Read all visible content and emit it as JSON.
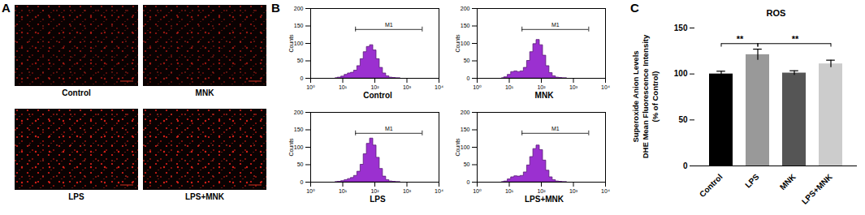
{
  "images": {
    "panel": "A",
    "labels": [
      "Control",
      "MNK",
      "LPS",
      "LPS+MNK"
    ]
  },
  "chart_data": [
    {
      "type": "area",
      "panel": "B",
      "title": "Control",
      "y_label": "Counts",
      "log": "x",
      "color": "#9b30d0",
      "x": [
        6,
        8,
        10,
        13,
        16,
        20,
        25,
        32,
        40,
        50,
        63,
        79,
        100,
        126,
        158,
        200,
        251,
        316,
        398,
        501,
        631
      ],
      "values": [
        0,
        2,
        5,
        10,
        14,
        16,
        22,
        35,
        55,
        75,
        90,
        95,
        80,
        55,
        30,
        14,
        6,
        2,
        1,
        0,
        0
      ],
      "xlim": [
        1,
        10000
      ],
      "xticks": [
        {
          "value": 1,
          "label": "10⁰"
        },
        {
          "value": 10,
          "label": "10¹"
        },
        {
          "value": 100,
          "label": "10²"
        },
        {
          "value": 1000,
          "label": "10³"
        },
        {
          "value": 10000,
          "label": "10⁴"
        }
      ],
      "ylim": [
        0,
        200
      ],
      "yticks": [
        0,
        50,
        100,
        150,
        200
      ],
      "gate": {
        "label": "M1",
        "from": 25,
        "to": 3000,
        "y": 140
      }
    },
    {
      "type": "area",
      "panel": "B",
      "title": "MNK",
      "y_label": "Counts",
      "log": "x",
      "color": "#9b30d0",
      "x": [
        6,
        8,
        10,
        13,
        16,
        20,
        25,
        32,
        40,
        50,
        63,
        79,
        100,
        126,
        158,
        200,
        251,
        316,
        398,
        501,
        631
      ],
      "values": [
        0,
        3,
        10,
        18,
        20,
        18,
        20,
        30,
        50,
        75,
        98,
        110,
        95,
        65,
        35,
        15,
        6,
        2,
        1,
        0,
        0
      ],
      "xlim": [
        1,
        10000
      ],
      "xticks": [
        {
          "value": 1,
          "label": "10⁰"
        },
        {
          "value": 10,
          "label": "10¹"
        },
        {
          "value": 100,
          "label": "10²"
        },
        {
          "value": 1000,
          "label": "10³"
        },
        {
          "value": 10000,
          "label": "10⁴"
        }
      ],
      "ylim": [
        0,
        200
      ],
      "yticks": [
        0,
        50,
        100,
        150,
        200
      ],
      "gate": {
        "label": "M1",
        "from": 25,
        "to": 3000,
        "y": 140
      }
    },
    {
      "type": "area",
      "panel": "B",
      "title": "LPS",
      "y_label": "Counts",
      "log": "x",
      "color": "#9b30d0",
      "x": [
        6,
        8,
        10,
        13,
        16,
        20,
        25,
        32,
        40,
        50,
        63,
        79,
        100,
        126,
        158,
        200,
        251,
        316,
        398,
        501,
        631
      ],
      "values": [
        0,
        1,
        3,
        6,
        9,
        12,
        18,
        30,
        50,
        80,
        110,
        125,
        105,
        70,
        38,
        16,
        6,
        2,
        1,
        0,
        0
      ],
      "xlim": [
        1,
        10000
      ],
      "xticks": [
        {
          "value": 1,
          "label": "10⁰"
        },
        {
          "value": 10,
          "label": "10¹"
        },
        {
          "value": 100,
          "label": "10²"
        },
        {
          "value": 1000,
          "label": "10³"
        },
        {
          "value": 10000,
          "label": "10⁴"
        }
      ],
      "ylim": [
        0,
        200
      ],
      "yticks": [
        0,
        50,
        100,
        150,
        200
      ],
      "gate": {
        "label": "M1",
        "from": 25,
        "to": 3000,
        "y": 140
      }
    },
    {
      "type": "area",
      "panel": "B",
      "title": "LPS+MNK",
      "y_label": "Counts",
      "log": "x",
      "color": "#9b30d0",
      "x": [
        6,
        8,
        10,
        13,
        16,
        20,
        25,
        32,
        40,
        50,
        63,
        79,
        100,
        126,
        158,
        200,
        251,
        316,
        398,
        501,
        631
      ],
      "values": [
        0,
        2,
        8,
        14,
        17,
        16,
        18,
        28,
        48,
        72,
        95,
        105,
        92,
        62,
        33,
        14,
        6,
        2,
        1,
        0,
        0
      ],
      "xlim": [
        1,
        10000
      ],
      "xticks": [
        {
          "value": 1,
          "label": "10⁰"
        },
        {
          "value": 10,
          "label": "10¹"
        },
        {
          "value": 100,
          "label": "10²"
        },
        {
          "value": 1000,
          "label": "10³"
        },
        {
          "value": 10000,
          "label": "10⁴"
        }
      ],
      "ylim": [
        0,
        200
      ],
      "yticks": [
        0,
        50,
        100,
        150,
        200
      ],
      "gate": {
        "label": "M1",
        "from": 25,
        "to": 3000,
        "y": 140
      }
    },
    {
      "type": "bar",
      "panel": "C",
      "title": "ROS",
      "y_label": [
        "Superoxide Anion Levels",
        "DHE Mean Fluorescence Intensity",
        "(% of Control)"
      ],
      "categories": [
        "Control",
        "LPS",
        "MNK",
        "LPS+MNK"
      ],
      "values": [
        100,
        121,
        101,
        111
      ],
      "errors": [
        3,
        6,
        2.5,
        4
      ],
      "colors": [
        "#000000",
        "#999999",
        "#555555",
        "#cccccc"
      ],
      "ylim": [
        0,
        150
      ],
      "yticks": [
        0,
        50,
        100,
        150
      ],
      "significance": [
        {
          "from": "Control",
          "to": "LPS",
          "label": "**"
        },
        {
          "from": "LPS",
          "to": "LPS+MNK",
          "label": "**"
        }
      ]
    }
  ]
}
